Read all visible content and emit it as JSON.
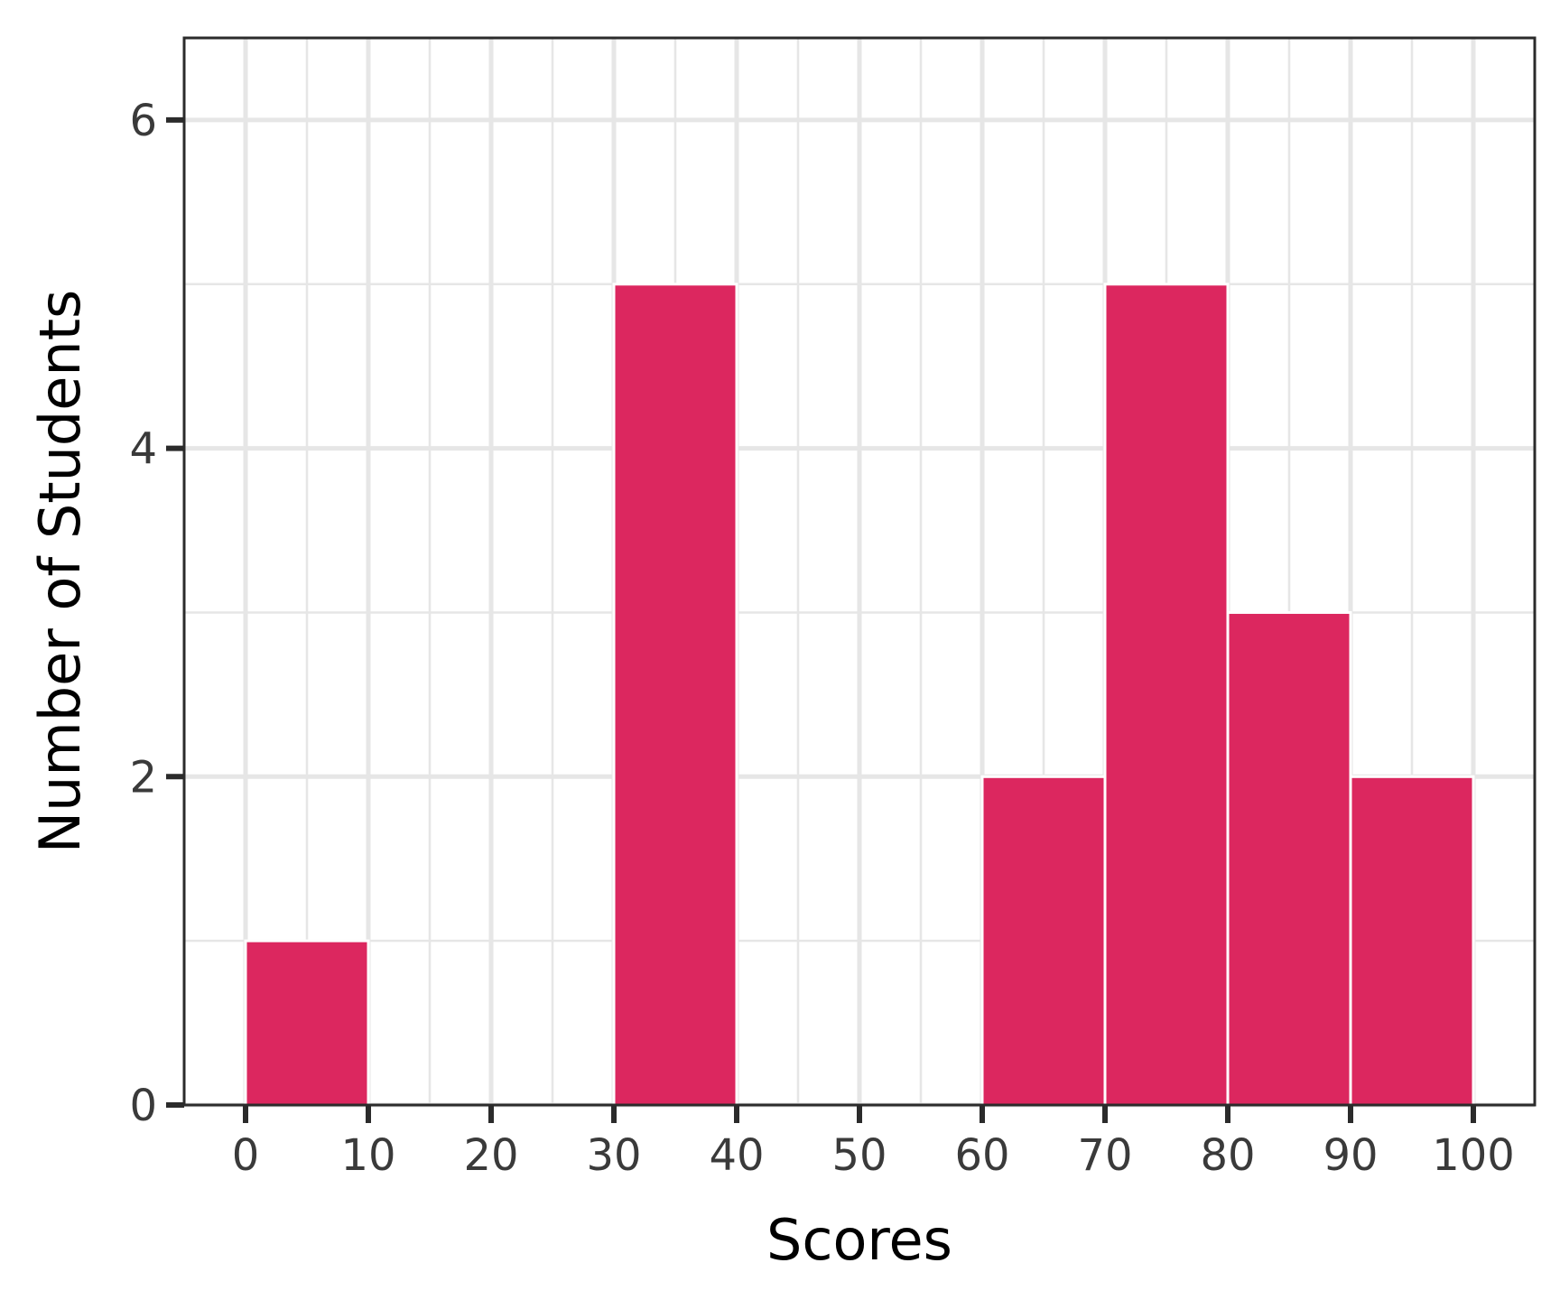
{
  "chart_data": {
    "type": "bar",
    "subtype": "histogram",
    "title": "",
    "xlabel": "Scores",
    "ylabel": "Number of Students",
    "bins": [
      {
        "start": 0,
        "end": 10,
        "count": 1
      },
      {
        "start": 10,
        "end": 20,
        "count": 0
      },
      {
        "start": 20,
        "end": 30,
        "count": 0
      },
      {
        "start": 30,
        "end": 40,
        "count": 5
      },
      {
        "start": 40,
        "end": 50,
        "count": 0
      },
      {
        "start": 50,
        "end": 60,
        "count": 0
      },
      {
        "start": 60,
        "end": 70,
        "count": 2
      },
      {
        "start": 70,
        "end": 80,
        "count": 5
      },
      {
        "start": 80,
        "end": 90,
        "count": 3
      },
      {
        "start": 90,
        "end": 100,
        "count": 2
      }
    ],
    "xlim": [
      -5,
      105
    ],
    "ylim": [
      0,
      6.5
    ],
    "xticks": [
      0,
      10,
      20,
      30,
      40,
      50,
      60,
      70,
      80,
      90,
      100
    ],
    "yticks": [
      0,
      2,
      4,
      6
    ],
    "grid": true,
    "colors": {
      "bar": "#DC275F",
      "bar_edge": "#ffffff",
      "grid": "#e6e6e6",
      "axis": "#2b2b2b"
    }
  }
}
